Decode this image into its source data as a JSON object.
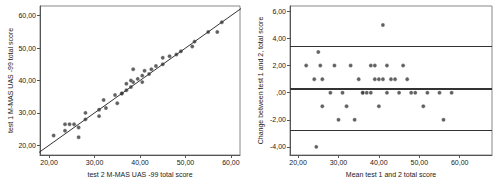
{
  "chart_data": [
    {
      "type": "scatter",
      "x_label": "test 2 M-MAS UAS -99 total score",
      "y_label": "test 1 M-MAS UAS -99 total score",
      "xlim": [
        18,
        62
      ],
      "ylim": [
        17,
        63
      ],
      "xticks": [
        {
          "value": 20,
          "label": "20,00"
        },
        {
          "value": 30,
          "label": "30,00"
        },
        {
          "value": 40,
          "label": "40,00"
        },
        {
          "value": 50,
          "label": "50,00"
        },
        {
          "value": 60,
          "label": "60,00"
        }
      ],
      "yticks": [
        {
          "value": 20,
          "label": "20,00"
        },
        {
          "value": 30,
          "label": "30,00"
        },
        {
          "value": 40,
          "label": "40,00"
        },
        {
          "value": 50,
          "label": "50,00"
        },
        {
          "value": 60,
          "label": "60,00"
        }
      ],
      "grid": false,
      "series": [
        {
          "type": "scatter",
          "color": "#3a3a3a",
          "marker": "circle",
          "x": [
            21,
            23.5,
            26.5,
            23.5,
            24.5,
            26.5,
            25.5,
            28,
            28,
            31,
            31,
            32.5,
            32,
            35,
            34.5,
            36,
            36,
            37,
            37,
            38,
            38.5,
            38,
            40.5,
            39.5,
            38.5,
            40.5,
            42,
            41,
            42.5,
            43.5,
            45,
            45,
            46.5,
            48,
            49,
            51.5,
            52,
            55,
            57,
            58
          ],
          "values": [
            23,
            24.5,
            22.5,
            26.5,
            26.5,
            25.5,
            26.5,
            28,
            30,
            29,
            31,
            31.5,
            34,
            33,
            35.5,
            36,
            36,
            37,
            39,
            38,
            39.5,
            40,
            39.5,
            40.5,
            43.5,
            41.5,
            42,
            43,
            43.5,
            44.5,
            45,
            47,
            47.5,
            48,
            49,
            50.5,
            52,
            55,
            55,
            58
          ]
        },
        {
          "type": "line",
          "color": "#333333",
          "line_style": "solid",
          "x": [
            17,
            63
          ],
          "values": [
            17,
            63
          ]
        }
      ]
    },
    {
      "type": "scatter",
      "x_label": "Mean test 1 and 2 total score",
      "y_label": "Change between test 1 and 2, total score",
      "xlim": [
        18,
        68
      ],
      "ylim": [
        -4.6,
        6.4
      ],
      "xticks": [
        {
          "value": 20,
          "label": "20,00"
        },
        {
          "value": 30,
          "label": "30,00"
        },
        {
          "value": 40,
          "label": "40,00"
        },
        {
          "value": 50,
          "label": "50,00"
        },
        {
          "value": 60,
          "label": "60,00"
        }
      ],
      "yticks": [
        {
          "value": -4,
          "label": "-4,00"
        },
        {
          "value": -2,
          "label": "-2,00"
        },
        {
          "value": 0,
          "label": ",00"
        },
        {
          "value": 2,
          "label": "2,00"
        },
        {
          "value": 4,
          "label": "4,00"
        },
        {
          "value": 6,
          "label": "6,00"
        }
      ],
      "grid": false,
      "reference_lines": [
        3.4,
        0.3,
        -2.8
      ],
      "series": [
        {
          "type": "scatter",
          "color": "#3a3a3a",
          "marker": "circle",
          "x": [
            22,
            24,
            24.5,
            25,
            25.5,
            26,
            26,
            28,
            29,
            30,
            31,
            32,
            33,
            34,
            35,
            36,
            36,
            37,
            38,
            38,
            39,
            39,
            40,
            40,
            41,
            41,
            42,
            42,
            43,
            44,
            45,
            46,
            47,
            48,
            49,
            51,
            52,
            55,
            56,
            58
          ],
          "values": [
            2,
            1,
            -4,
            3,
            2,
            -1,
            1,
            0,
            2,
            -2,
            0,
            -1,
            2,
            -2,
            1,
            0,
            0,
            0,
            2,
            0,
            1,
            2,
            -1,
            1,
            5,
            1,
            0,
            2,
            1,
            1,
            0,
            2,
            1,
            0,
            0,
            -1,
            0,
            0,
            -2,
            0
          ]
        }
      ]
    }
  ]
}
